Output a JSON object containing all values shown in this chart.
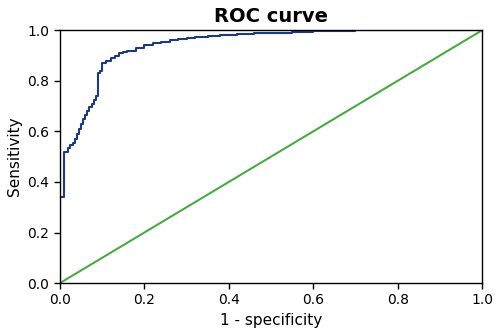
{
  "title": "ROC curve",
  "xlabel": "1 - specificity",
  "ylabel": "Sensitivity",
  "xlim": [
    0.0,
    1.0
  ],
  "ylim": [
    0.0,
    1.0
  ],
  "xticks": [
    0.0,
    0.2,
    0.4,
    0.6,
    0.8,
    1.0
  ],
  "yticks": [
    0.0,
    0.2,
    0.4,
    0.6,
    0.8,
    1.0
  ],
  "roc_curve_color": "#1f3a7a",
  "diagonal_color": "#4aaa44",
  "title_fontsize": 14,
  "label_fontsize": 11,
  "tick_fontsize": 10,
  "line_width": 1.5,
  "diagonal_linewidth": 1.5,
  "background_color": "#ffffff",
  "roc_x": [
    0.0,
    0.0,
    0.01,
    0.01,
    0.02,
    0.02,
    0.025,
    0.025,
    0.03,
    0.03,
    0.035,
    0.035,
    0.04,
    0.04,
    0.045,
    0.045,
    0.05,
    0.05,
    0.055,
    0.055,
    0.06,
    0.06,
    0.065,
    0.065,
    0.07,
    0.07,
    0.075,
    0.075,
    0.08,
    0.08,
    0.085,
    0.085,
    0.09,
    0.09,
    0.095,
    0.095,
    0.1,
    0.1,
    0.11,
    0.11,
    0.12,
    0.12,
    0.13,
    0.13,
    0.14,
    0.14,
    0.15,
    0.15,
    0.16,
    0.16,
    0.18,
    0.18,
    0.2,
    0.2,
    0.22,
    0.22,
    0.24,
    0.24,
    0.26,
    0.26,
    0.28,
    0.28,
    0.3,
    0.3,
    0.32,
    0.32,
    0.35,
    0.35,
    0.38,
    0.38,
    0.42,
    0.42,
    0.46,
    0.46,
    0.5,
    0.5,
    0.55,
    0.55,
    0.6,
    0.6,
    0.65,
    0.65,
    0.7,
    0.7,
    0.75,
    0.75,
    0.78,
    0.78,
    1.0
  ],
  "roc_y": [
    0.0,
    0.34,
    0.34,
    0.52,
    0.52,
    0.535,
    0.535,
    0.545,
    0.545,
    0.555,
    0.555,
    0.57,
    0.57,
    0.59,
    0.59,
    0.61,
    0.61,
    0.63,
    0.63,
    0.65,
    0.65,
    0.665,
    0.665,
    0.68,
    0.68,
    0.695,
    0.695,
    0.71,
    0.71,
    0.725,
    0.725,
    0.74,
    0.74,
    0.83,
    0.83,
    0.84,
    0.84,
    0.87,
    0.87,
    0.88,
    0.88,
    0.89,
    0.89,
    0.9,
    0.9,
    0.91,
    0.91,
    0.915,
    0.915,
    0.92,
    0.92,
    0.93,
    0.93,
    0.94,
    0.94,
    0.95,
    0.95,
    0.955,
    0.955,
    0.96,
    0.96,
    0.965,
    0.965,
    0.97,
    0.97,
    0.975,
    0.975,
    0.978,
    0.978,
    0.982,
    0.982,
    0.985,
    0.985,
    0.988,
    0.988,
    0.991,
    0.991,
    0.994,
    0.994,
    0.997,
    0.997,
    0.999,
    0.999,
    1.0,
    1.0,
    1.0,
    1.0,
    1.0,
    1.0
  ]
}
